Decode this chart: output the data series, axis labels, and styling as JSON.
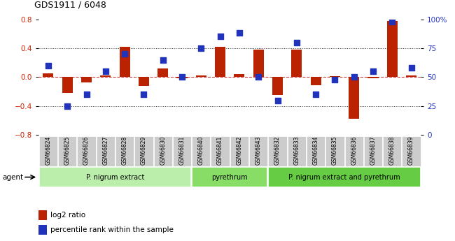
{
  "title": "GDS1911 / 6048",
  "samples": [
    "GSM66824",
    "GSM66825",
    "GSM66826",
    "GSM66827",
    "GSM66828",
    "GSM66829",
    "GSM66830",
    "GSM66831",
    "GSM66840",
    "GSM66841",
    "GSM66842",
    "GSM66843",
    "GSM66832",
    "GSM66833",
    "GSM66834",
    "GSM66835",
    "GSM66836",
    "GSM66837",
    "GSM66838",
    "GSM66839"
  ],
  "log2_ratio": [
    0.05,
    -0.22,
    -0.07,
    0.02,
    0.42,
    -0.12,
    0.12,
    -0.02,
    0.02,
    0.42,
    0.04,
    0.38,
    -0.25,
    0.38,
    -0.11,
    0.01,
    -0.58,
    -0.02,
    0.78,
    0.02
  ],
  "percentile": [
    60,
    25,
    35,
    55,
    70,
    35,
    65,
    50,
    75,
    85,
    88,
    50,
    30,
    80,
    35,
    48,
    50,
    55,
    98,
    58
  ],
  "ylim_left": [
    -0.8,
    0.8
  ],
  "ylim_right": [
    0,
    100
  ],
  "yticks_left": [
    -0.8,
    -0.4,
    0.0,
    0.4,
    0.8
  ],
  "yticks_right": [
    0,
    25,
    50,
    75,
    100
  ],
  "ytick_labels_right": [
    "0",
    "25",
    "50",
    "75",
    "100%"
  ],
  "hlines_dotted": [
    0.4,
    -0.4
  ],
  "bar_color": "#bb2200",
  "dot_color": "#2233bb",
  "zero_line_color": "#cc3333",
  "hline_color": "#333333",
  "groups": [
    {
      "label": "P. nigrum extract",
      "start": 0,
      "end": 8,
      "color": "#bbeeaa"
    },
    {
      "label": "pyrethrum",
      "start": 8,
      "end": 12,
      "color": "#88dd66"
    },
    {
      "label": "P. nigrum extract and pyrethrum",
      "start": 12,
      "end": 20,
      "color": "#66cc44"
    }
  ],
  "legend_bar_label": "log2 ratio",
  "legend_dot_label": "percentile rank within the sample",
  "agent_label": "agent",
  "bar_width": 0.55,
  "dot_size": 28,
  "left_axis_color": "#cc2200",
  "right_axis_color": "#2233bb"
}
